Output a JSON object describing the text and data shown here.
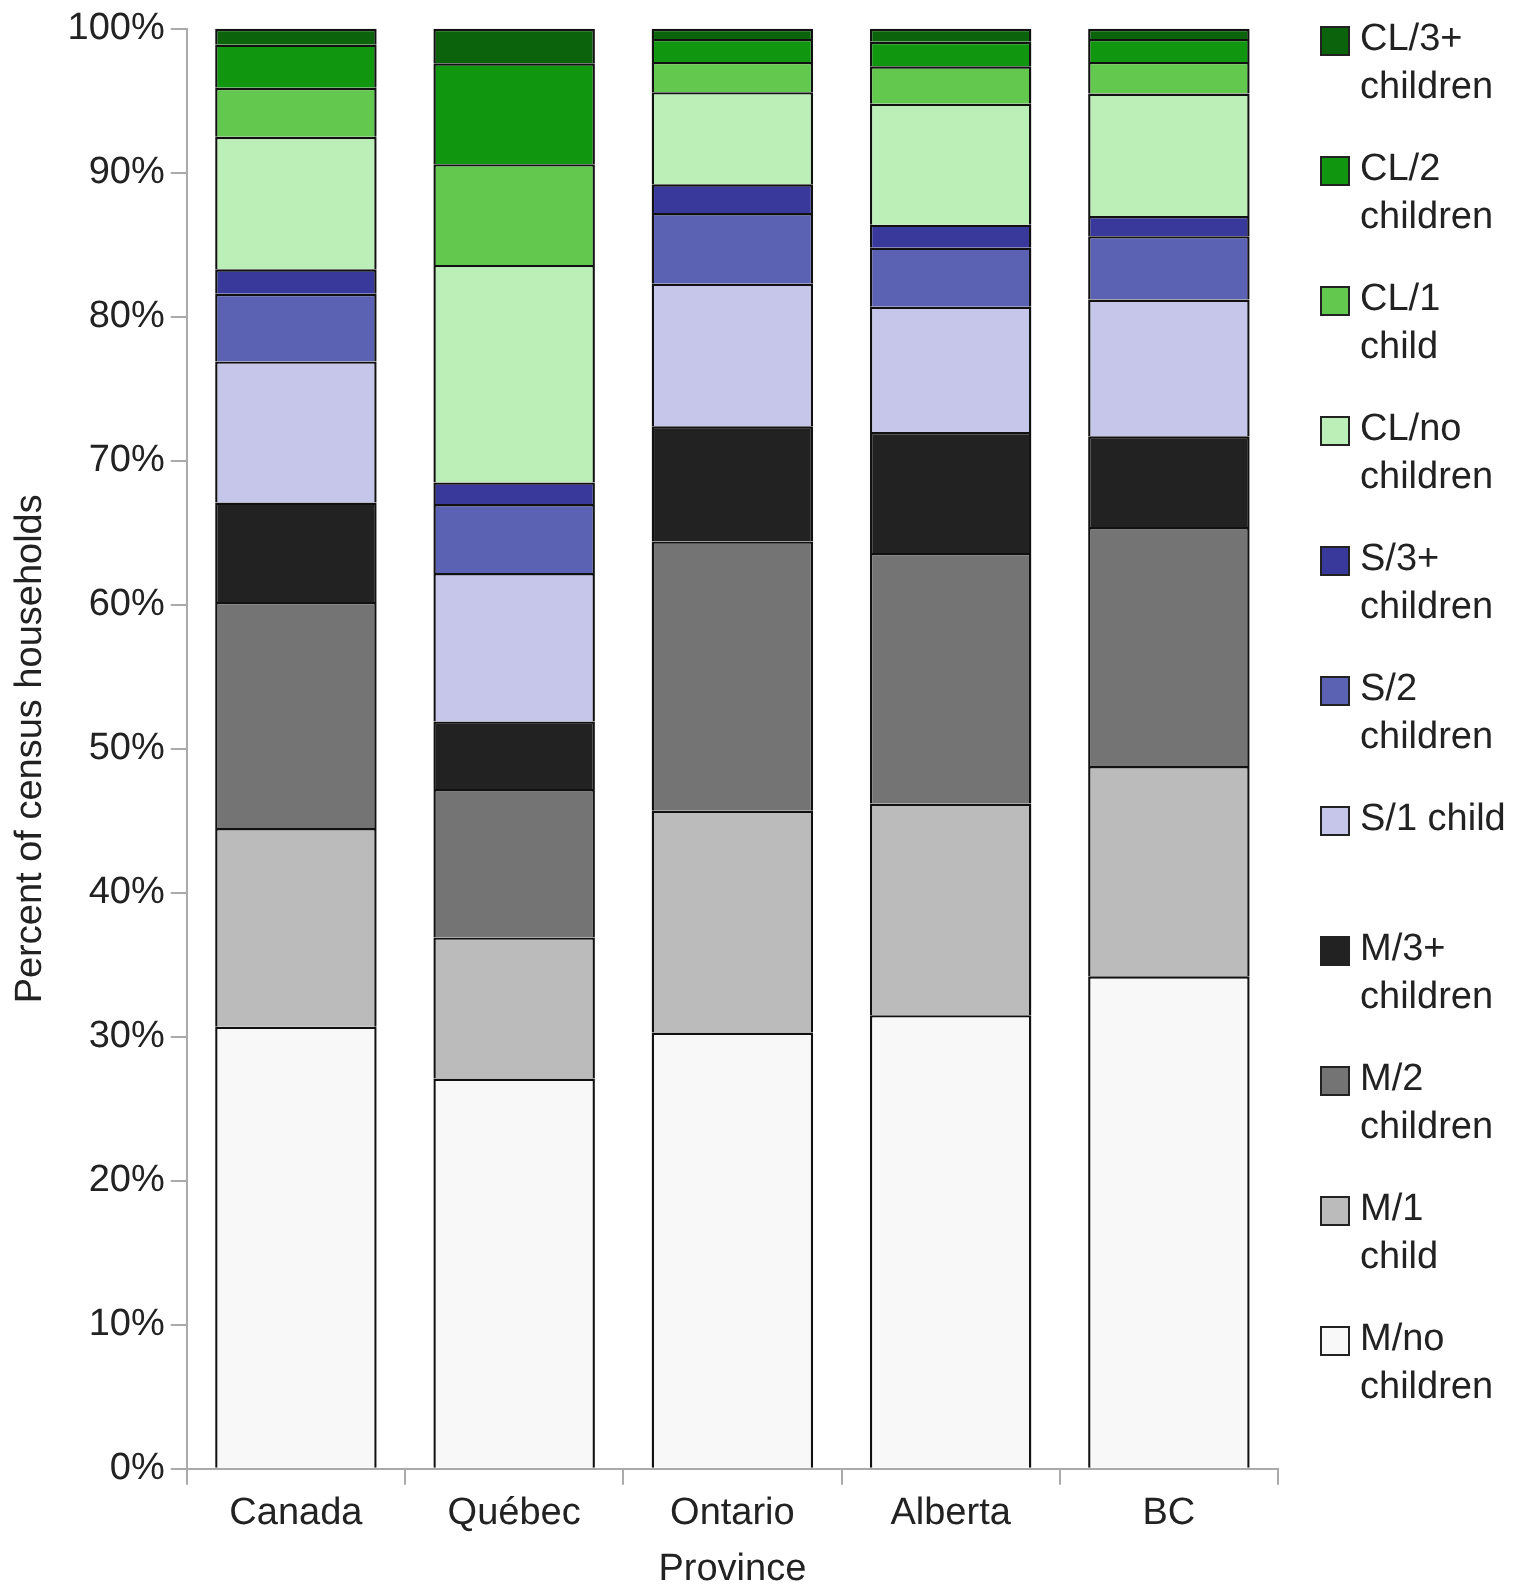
{
  "chart_data": {
    "type": "bar",
    "stacked": true,
    "xlabel": "Province",
    "ylabel": "Percent of census households",
    "categories": [
      "Canada",
      "Québec",
      "Ontario",
      "Alberta",
      "BC"
    ],
    "ylim": [
      0,
      100
    ],
    "yticks": [
      {
        "value": 0,
        "label": "0%"
      },
      {
        "value": 10,
        "label": "10%"
      },
      {
        "value": 20,
        "label": "20%"
      },
      {
        "value": 30,
        "label": "30%"
      },
      {
        "value": 40,
        "label": "40%"
      },
      {
        "value": 50,
        "label": "50%"
      },
      {
        "value": 60,
        "label": "60%"
      },
      {
        "value": 70,
        "label": "70%"
      },
      {
        "value": 80,
        "label": "80%"
      },
      {
        "value": 90,
        "label": "90%"
      },
      {
        "value": 100,
        "label": "100%"
      }
    ],
    "grid": false,
    "legend": "right",
    "series": [
      {
        "name": "M/no children",
        "color": "#f8f8f8",
        "values": [
          30.7,
          27.1,
          30.3,
          31.5,
          34.2
        ]
      },
      {
        "name": "M/1 child",
        "color": "#babbba",
        "values": [
          13.8,
          9.8,
          15.4,
          14.7,
          14.6
        ]
      },
      {
        "name": "M/2 children",
        "color": "#747474",
        "values": [
          15.7,
          10.3,
          18.7,
          17.4,
          16.6
        ]
      },
      {
        "name": "M/3+ children",
        "color": "#222222",
        "values": [
          6.9,
          4.7,
          8.0,
          8.4,
          6.3
        ]
      },
      {
        "name": "S/1 child",
        "color": "#c6c6ea",
        "values": [
          9.8,
          10.3,
          9.9,
          8.7,
          9.5
        ]
      },
      {
        "name": "S/2 children",
        "color": "#5b62b4",
        "values": [
          4.7,
          4.8,
          4.9,
          4.1,
          4.4
        ]
      },
      {
        "name": "S/3+ children",
        "color": "#38399a",
        "values": [
          1.7,
          1.5,
          2.0,
          1.6,
          1.4
        ]
      },
      {
        "name": "CL/no children",
        "color": "#bcefb8",
        "values": [
          9.2,
          15.1,
          6.4,
          8.4,
          8.5
        ]
      },
      {
        "name": "CL/1 child",
        "color": "#62c84e",
        "values": [
          3.4,
          7.0,
          2.1,
          2.6,
          2.2
        ]
      },
      {
        "name": "CL/2 children",
        "color": "#10970f",
        "values": [
          3.0,
          7.0,
          1.6,
          1.7,
          1.6
        ]
      },
      {
        "name": "CL/3+ children",
        "color": "#0b640b",
        "values": [
          1.1,
          2.4,
          0.7,
          0.9,
          0.7
        ]
      }
    ]
  }
}
